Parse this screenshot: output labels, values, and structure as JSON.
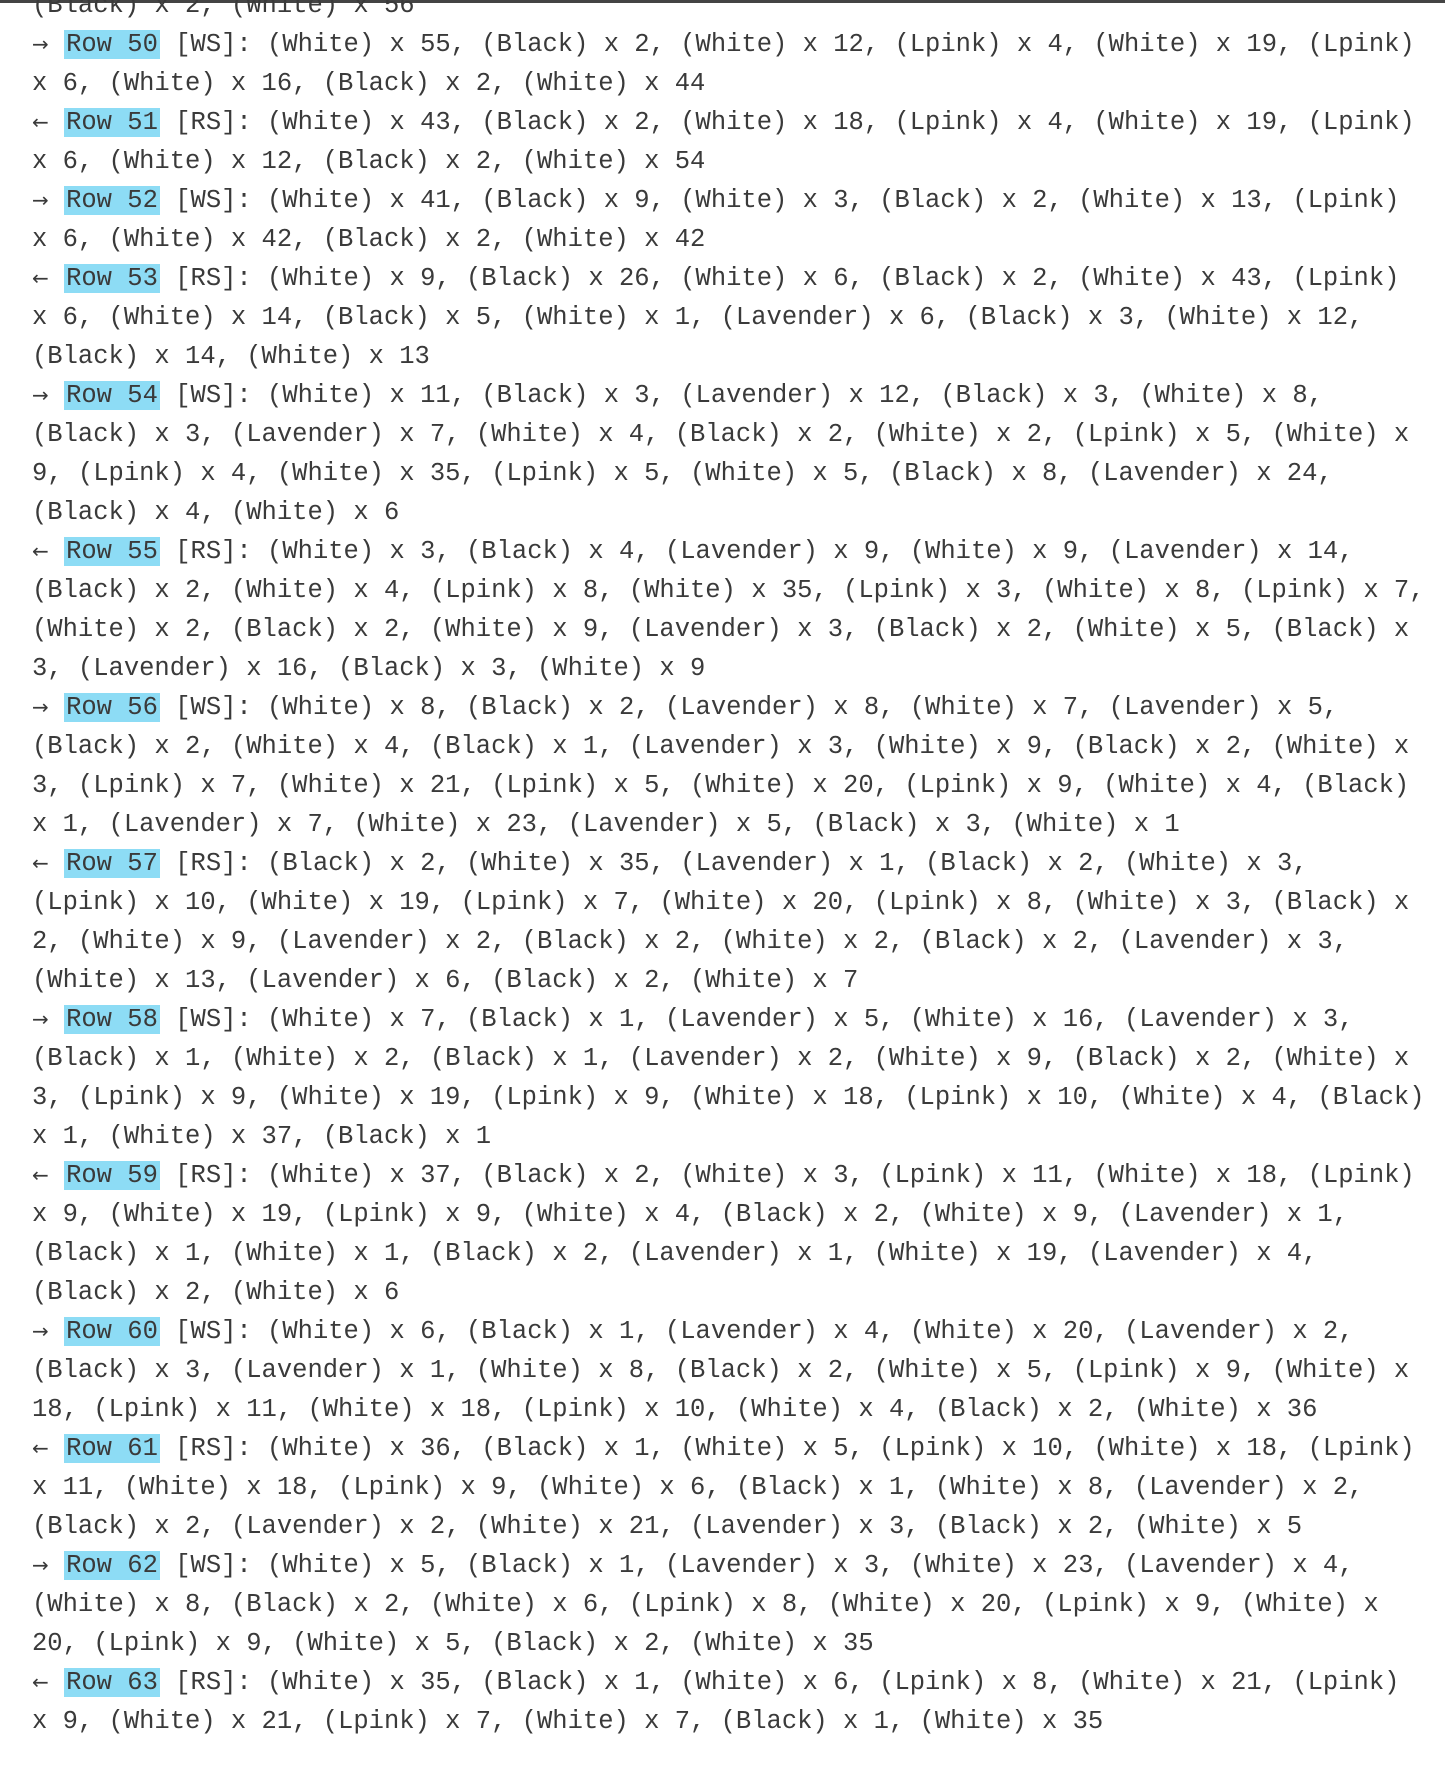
{
  "partial_top_line": "(Black) x 2, (White) x 56",
  "rows": [
    {
      "arrow": "→",
      "label": "Row 50",
      "side": "[WS]:",
      "text": "(White) x 55, (Black) x 2, (White) x 12, (Lpink) x 4, (White) x 19, (Lpink) x 6, (White) x 16, (Black) x 2, (White) x 44"
    },
    {
      "arrow": "←",
      "label": "Row 51",
      "side": "[RS]:",
      "text": "(White) x 43, (Black) x 2, (White) x 18, (Lpink) x 4, (White) x 19, (Lpink) x 6, (White) x 12, (Black) x 2, (White) x 54"
    },
    {
      "arrow": "→",
      "label": "Row 52",
      "side": "[WS]:",
      "text": "(White) x 41, (Black) x 9, (White) x 3, (Black) x 2, (White) x 13, (Lpink) x 6, (White) x 42, (Black) x 2, (White) x 42"
    },
    {
      "arrow": "←",
      "label": "Row 53",
      "side": "[RS]:",
      "text": "(White) x 9, (Black) x 26, (White) x 6, (Black) x 2, (White) x 43, (Lpink) x 6, (White) x 14, (Black) x 5, (White) x 1, (Lavender) x 6, (Black) x 3, (White) x 12, (Black) x 14, (White) x 13"
    },
    {
      "arrow": "→",
      "label": "Row 54",
      "side": "[WS]:",
      "text": "(White) x 11, (Black) x 3, (Lavender) x 12, (Black) x 3, (White) x 8, (Black) x 3, (Lavender) x 7, (White) x 4, (Black) x 2, (White) x 2, (Lpink) x 5, (White) x 9, (Lpink) x 4, (White) x 35, (Lpink) x 5, (White) x 5, (Black) x 8, (Lavender) x 24, (Black) x 4, (White) x 6"
    },
    {
      "arrow": "←",
      "label": "Row 55",
      "side": "[RS]:",
      "text": "(White) x 3, (Black) x 4, (Lavender) x 9, (White) x 9, (Lavender) x 14, (Black) x 2, (White) x 4, (Lpink) x 8, (White) x 35, (Lpink) x 3, (White) x 8, (Lpink) x 7, (White) x 2, (Black) x 2, (White) x 9, (Lavender) x 3, (Black) x 2, (White) x 5, (Black) x 3, (Lavender) x 16, (Black) x 3, (White) x 9"
    },
    {
      "arrow": "→",
      "label": "Row 56",
      "side": "[WS]:",
      "text": "(White) x 8, (Black) x 2, (Lavender) x 8, (White) x 7, (Lavender) x 5, (Black) x 2, (White) x 4, (Black) x 1, (Lavender) x 3, (White) x 9, (Black) x 2, (White) x 3, (Lpink) x 7, (White) x 21, (Lpink) x 5, (White) x 20, (Lpink) x 9, (White) x 4, (Black) x 1, (Lavender) x 7, (White) x 23, (Lavender) x 5, (Black) x 3, (White) x 1"
    },
    {
      "arrow": "←",
      "label": "Row 57",
      "side": "[RS]:",
      "text": "(Black) x 2, (White) x 35, (Lavender) x 1, (Black) x 2, (White) x 3, (Lpink) x 10, (White) x 19, (Lpink) x 7, (White) x 20, (Lpink) x 8, (White) x 3, (Black) x 2, (White) x 9, (Lavender) x 2, (Black) x 2, (White) x 2, (Black) x 2, (Lavender) x 3, (White) x 13, (Lavender) x 6, (Black) x 2, (White) x 7"
    },
    {
      "arrow": "→",
      "label": "Row 58",
      "side": "[WS]:",
      "text": "(White) x 7, (Black) x 1, (Lavender) x 5, (White) x 16, (Lavender) x 3, (Black) x 1, (White) x 2, (Black) x 1, (Lavender) x 2, (White) x 9, (Black) x 2, (White) x 3, (Lpink) x 9, (White) x 19, (Lpink) x 9, (White) x 18, (Lpink) x 10, (White) x 4, (Black) x 1, (White) x 37, (Black) x 1"
    },
    {
      "arrow": "←",
      "label": "Row 59",
      "side": "[RS]:",
      "text": "(White) x 37, (Black) x 2, (White) x 3, (Lpink) x 11, (White) x 18, (Lpink) x 9, (White) x 19, (Lpink) x 9, (White) x 4, (Black) x 2, (White) x 9, (Lavender) x 1, (Black) x 1, (White) x 1, (Black) x 2, (Lavender) x 1, (White) x 19, (Lavender) x 4, (Black) x 2, (White) x 6"
    },
    {
      "arrow": "→",
      "label": "Row 60",
      "side": "[WS]:",
      "text": "(White) x 6, (Black) x 1, (Lavender) x 4, (White) x 20, (Lavender) x 2, (Black) x 3, (Lavender) x 1, (White) x 8, (Black) x 2, (White) x 5, (Lpink) x 9, (White) x 18, (Lpink) x 11, (White) x 18, (Lpink) x 10, (White) x 4, (Black) x 2, (White) x 36"
    },
    {
      "arrow": "←",
      "label": "Row 61",
      "side": "[RS]:",
      "text": "(White) x 36, (Black) x 1, (White) x 5, (Lpink) x 10, (White) x 18, (Lpink) x 11, (White) x 18, (Lpink) x 9, (White) x 6, (Black) x 1, (White) x 8, (Lavender) x 2, (Black) x 2, (Lavender) x 2, (White) x 21, (Lavender) x 3, (Black) x 2, (White) x 5"
    },
    {
      "arrow": "→",
      "label": "Row 62",
      "side": "[WS]:",
      "text": "(White) x 5, (Black) x 1, (Lavender) x 3, (White) x 23, (Lavender) x 4, (White) x 8, (Black) x 2, (White) x 6, (Lpink) x 8, (White) x 20, (Lpink) x 9, (White) x 20, (Lpink) x 9, (White) x 5, (Black) x 2, (White) x 35"
    },
    {
      "arrow": "←",
      "label": "Row 63",
      "side": "[RS]:",
      "text": "(White) x 35, (Black) x 1, (White) x 6, (Lpink) x 8, (White) x 21, (Lpink) x 9, (White) x 21, (Lpink) x 7, (White) x 7, (Black) x 1, (White) x 35"
    }
  ],
  "colors": {
    "row_highlight": "#8ddcf5",
    "text": "#3a3a3a"
  }
}
